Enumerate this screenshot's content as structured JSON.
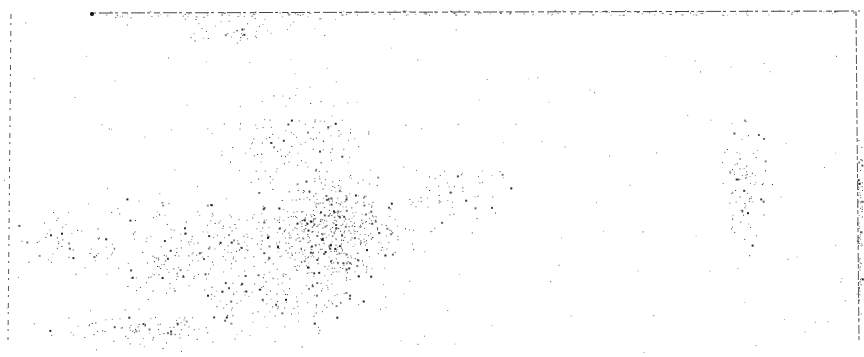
{
  "image": {
    "background_color": "#ffffff",
    "ink_color": "#1a1a1a",
    "edge_color": "#333333",
    "texture": "sparse-speckle"
  }
}
